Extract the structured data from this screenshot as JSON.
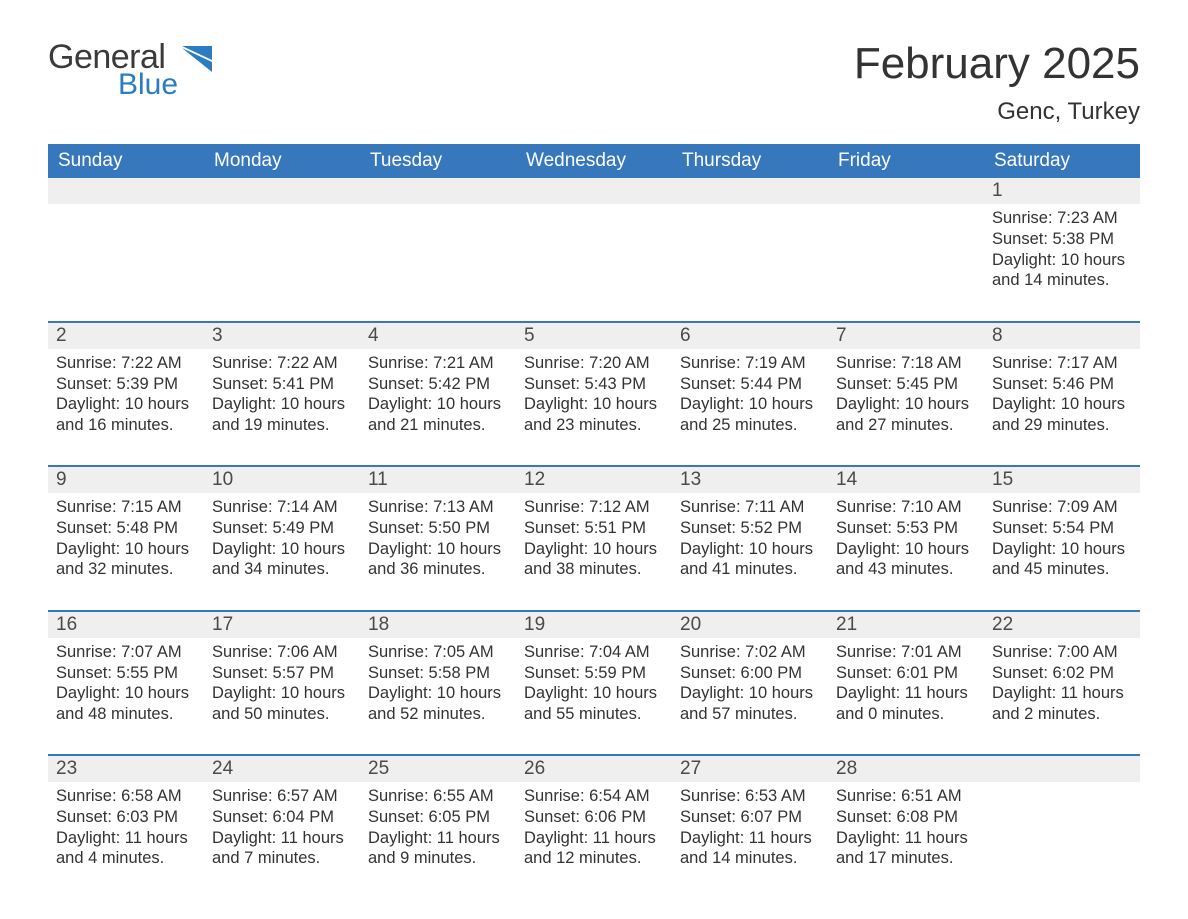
{
  "brand": {
    "word1": "General",
    "word2": "Blue",
    "word1_color": "#3a3a3a",
    "word2_color": "#2b7cc0",
    "flag_color": "#2b7cc0"
  },
  "header": {
    "title": "February 2025",
    "location": "Genc, Turkey"
  },
  "colors": {
    "header_bg": "#3777bc",
    "header_text": "#ffffff",
    "week_border": "#3777bc",
    "daynum_bg": "#efefef",
    "text": "#333333",
    "page_bg": "#ffffff"
  },
  "day_names": [
    "Sunday",
    "Monday",
    "Tuesday",
    "Wednesday",
    "Thursday",
    "Friday",
    "Saturday"
  ],
  "weeks": [
    [
      null,
      null,
      null,
      null,
      null,
      null,
      {
        "d": "1",
        "sunrise": "7:23 AM",
        "sunset": "5:38 PM",
        "dl": "10 hours and 14 minutes."
      }
    ],
    [
      {
        "d": "2",
        "sunrise": "7:22 AM",
        "sunset": "5:39 PM",
        "dl": "10 hours and 16 minutes."
      },
      {
        "d": "3",
        "sunrise": "7:22 AM",
        "sunset": "5:41 PM",
        "dl": "10 hours and 19 minutes."
      },
      {
        "d": "4",
        "sunrise": "7:21 AM",
        "sunset": "5:42 PM",
        "dl": "10 hours and 21 minutes."
      },
      {
        "d": "5",
        "sunrise": "7:20 AM",
        "sunset": "5:43 PM",
        "dl": "10 hours and 23 minutes."
      },
      {
        "d": "6",
        "sunrise": "7:19 AM",
        "sunset": "5:44 PM",
        "dl": "10 hours and 25 minutes."
      },
      {
        "d": "7",
        "sunrise": "7:18 AM",
        "sunset": "5:45 PM",
        "dl": "10 hours and 27 minutes."
      },
      {
        "d": "8",
        "sunrise": "7:17 AM",
        "sunset": "5:46 PM",
        "dl": "10 hours and 29 minutes."
      }
    ],
    [
      {
        "d": "9",
        "sunrise": "7:15 AM",
        "sunset": "5:48 PM",
        "dl": "10 hours and 32 minutes."
      },
      {
        "d": "10",
        "sunrise": "7:14 AM",
        "sunset": "5:49 PM",
        "dl": "10 hours and 34 minutes."
      },
      {
        "d": "11",
        "sunrise": "7:13 AM",
        "sunset": "5:50 PM",
        "dl": "10 hours and 36 minutes."
      },
      {
        "d": "12",
        "sunrise": "7:12 AM",
        "sunset": "5:51 PM",
        "dl": "10 hours and 38 minutes."
      },
      {
        "d": "13",
        "sunrise": "7:11 AM",
        "sunset": "5:52 PM",
        "dl": "10 hours and 41 minutes."
      },
      {
        "d": "14",
        "sunrise": "7:10 AM",
        "sunset": "5:53 PM",
        "dl": "10 hours and 43 minutes."
      },
      {
        "d": "15",
        "sunrise": "7:09 AM",
        "sunset": "5:54 PM",
        "dl": "10 hours and 45 minutes."
      }
    ],
    [
      {
        "d": "16",
        "sunrise": "7:07 AM",
        "sunset": "5:55 PM",
        "dl": "10 hours and 48 minutes."
      },
      {
        "d": "17",
        "sunrise": "7:06 AM",
        "sunset": "5:57 PM",
        "dl": "10 hours and 50 minutes."
      },
      {
        "d": "18",
        "sunrise": "7:05 AM",
        "sunset": "5:58 PM",
        "dl": "10 hours and 52 minutes."
      },
      {
        "d": "19",
        "sunrise": "7:04 AM",
        "sunset": "5:59 PM",
        "dl": "10 hours and 55 minutes."
      },
      {
        "d": "20",
        "sunrise": "7:02 AM",
        "sunset": "6:00 PM",
        "dl": "10 hours and 57 minutes."
      },
      {
        "d": "21",
        "sunrise": "7:01 AM",
        "sunset": "6:01 PM",
        "dl": "11 hours and 0 minutes."
      },
      {
        "d": "22",
        "sunrise": "7:00 AM",
        "sunset": "6:02 PM",
        "dl": "11 hours and 2 minutes."
      }
    ],
    [
      {
        "d": "23",
        "sunrise": "6:58 AM",
        "sunset": "6:03 PM",
        "dl": "11 hours and 4 minutes."
      },
      {
        "d": "24",
        "sunrise": "6:57 AM",
        "sunset": "6:04 PM",
        "dl": "11 hours and 7 minutes."
      },
      {
        "d": "25",
        "sunrise": "6:55 AM",
        "sunset": "6:05 PM",
        "dl": "11 hours and 9 minutes."
      },
      {
        "d": "26",
        "sunrise": "6:54 AM",
        "sunset": "6:06 PM",
        "dl": "11 hours and 12 minutes."
      },
      {
        "d": "27",
        "sunrise": "6:53 AM",
        "sunset": "6:07 PM",
        "dl": "11 hours and 14 minutes."
      },
      {
        "d": "28",
        "sunrise": "6:51 AM",
        "sunset": "6:08 PM",
        "dl": "11 hours and 17 minutes."
      },
      null
    ]
  ],
  "labels": {
    "sunrise": "Sunrise: ",
    "sunset": "Sunset: ",
    "daylight": "Daylight: "
  }
}
